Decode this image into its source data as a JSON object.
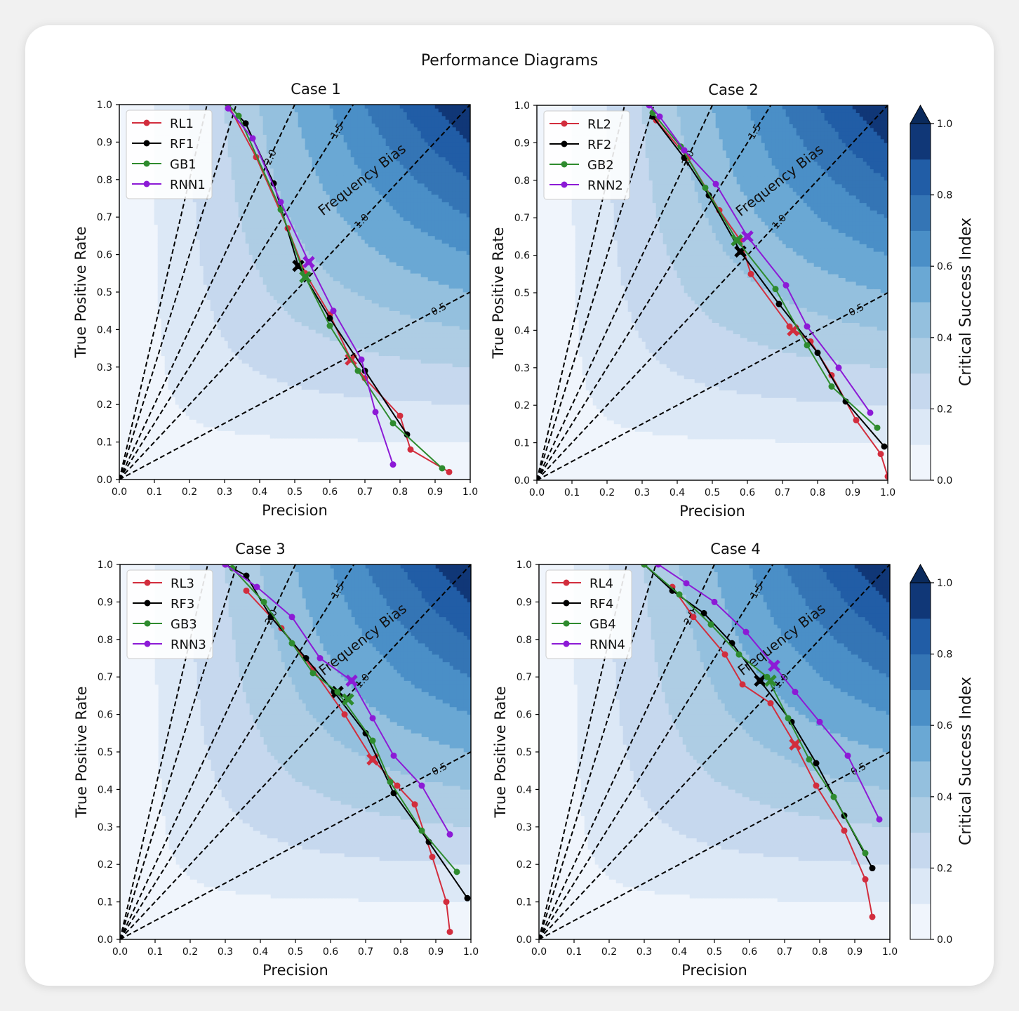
{
  "suptitle": "Performance Diagrams",
  "xlabel": "Precision",
  "ylabel": "True Positive Rate",
  "bias_label": "Frequency Bias",
  "colorbar": {
    "label": "Critical Success Index",
    "ticks": [
      "0.0",
      "0.2",
      "0.4",
      "0.6",
      "0.8",
      "1.0"
    ],
    "colors": [
      "#f0f5fc",
      "#dce8f6",
      "#c6d8ee",
      "#aecde4",
      "#94c0de",
      "#6aa8d4",
      "#4a8fc7",
      "#3475b5",
      "#215da6",
      "#103777"
    ]
  },
  "tick_labels": [
    "0.0",
    "0.1",
    "0.2",
    "0.3",
    "0.4",
    "0.5",
    "0.6",
    "0.7",
    "0.8",
    "0.9",
    "1.0"
  ],
  "bias_lines": [
    {
      "bias": 2.0,
      "label": "2.0"
    },
    {
      "bias": 1.5,
      "label": "1.5"
    },
    {
      "bias": 1.0,
      "label": "1.0"
    },
    {
      "bias": 0.5,
      "label": "0.5"
    },
    {
      "bias": 3.0,
      "label": ""
    },
    {
      "bias": 4.0,
      "label": ""
    }
  ],
  "series_colors": {
    "RL": "#d22d3d",
    "RF": "#000000",
    "GB": "#2e8b2e",
    "RNN": "#8c1ad6"
  },
  "chart_data": [
    {
      "type": "line",
      "title": "Case 1",
      "xlabel": "Precision",
      "ylabel": "True Positive Rate",
      "xlim": [
        0,
        1
      ],
      "ylim": [
        0,
        1
      ],
      "series": [
        {
          "name": "RL1",
          "x": [
            0.31,
            0.39,
            0.48,
            0.53,
            0.6,
            0.66,
            0.7,
            0.8,
            0.83,
            0.94
          ],
          "y": [
            1.0,
            0.86,
            0.67,
            0.55,
            0.44,
            0.32,
            0.27,
            0.17,
            0.08,
            0.02
          ],
          "marker_x": 0.66,
          "marker_y": 0.32
        },
        {
          "name": "RF1",
          "x": [
            0.31,
            0.36,
            0.44,
            0.51,
            0.6,
            0.7,
            0.82
          ],
          "y": [
            1.0,
            0.95,
            0.79,
            0.57,
            0.43,
            0.29,
            0.12
          ],
          "marker_x": 0.51,
          "marker_y": 0.57
        },
        {
          "name": "GB1",
          "x": [
            0.31,
            0.34,
            0.46,
            0.53,
            0.6,
            0.68,
            0.78,
            0.92
          ],
          "y": [
            1.0,
            0.97,
            0.72,
            0.54,
            0.41,
            0.29,
            0.15,
            0.03
          ],
          "marker_x": 0.53,
          "marker_y": 0.54
        },
        {
          "name": "RNN1",
          "x": [
            0.31,
            0.38,
            0.46,
            0.54,
            0.61,
            0.69,
            0.73,
            0.78
          ],
          "y": [
            0.99,
            0.91,
            0.74,
            0.58,
            0.45,
            0.32,
            0.18,
            0.04
          ],
          "marker_x": 0.54,
          "marker_y": 0.58
        }
      ]
    },
    {
      "type": "line",
      "title": "Case 2",
      "xlabel": "Precision",
      "ylabel": "True Positive Rate",
      "xlim": [
        0,
        1
      ],
      "ylim": [
        0,
        1
      ],
      "series": [
        {
          "name": "RL2",
          "x": [
            0.34,
            0.43,
            0.52,
            0.58,
            0.61,
            0.72,
            0.78,
            0.84,
            0.91,
            0.98,
            1.0
          ],
          "y": [
            0.96,
            0.86,
            0.72,
            0.64,
            0.55,
            0.41,
            0.37,
            0.28,
            0.16,
            0.07,
            0.01
          ],
          "marker_x": 0.73,
          "marker_y": 0.4
        },
        {
          "name": "RF2",
          "x": [
            0.33,
            0.42,
            0.49,
            0.58,
            0.69,
            0.8,
            0.88,
            0.99
          ],
          "y": [
            0.97,
            0.86,
            0.76,
            0.61,
            0.47,
            0.34,
            0.21,
            0.09
          ],
          "marker_x": 0.58,
          "marker_y": 0.61
        },
        {
          "name": "GB2",
          "x": [
            0.33,
            0.41,
            0.48,
            0.57,
            0.68,
            0.77,
            0.84,
            0.97
          ],
          "y": [
            0.98,
            0.89,
            0.78,
            0.64,
            0.51,
            0.36,
            0.25,
            0.14
          ],
          "marker_x": 0.57,
          "marker_y": 0.64
        },
        {
          "name": "RNN2",
          "x": [
            0.32,
            0.35,
            0.42,
            0.51,
            0.6,
            0.71,
            0.77,
            0.86,
            0.95
          ],
          "y": [
            1.0,
            0.97,
            0.88,
            0.79,
            0.65,
            0.52,
            0.41,
            0.3,
            0.18
          ],
          "marker_x": 0.6,
          "marker_y": 0.65
        }
      ]
    },
    {
      "type": "line",
      "title": "Case 3",
      "xlabel": "Precision",
      "ylabel": "True Positive Rate",
      "xlim": [
        0,
        1
      ],
      "ylim": [
        0,
        1
      ],
      "series": [
        {
          "name": "RL3",
          "x": [
            0.36,
            0.46,
            0.55,
            0.64,
            0.72,
            0.79,
            0.84,
            0.89,
            0.93,
            0.94
          ],
          "y": [
            0.93,
            0.83,
            0.72,
            0.6,
            0.48,
            0.41,
            0.36,
            0.22,
            0.1,
            0.02
          ],
          "marker_x": 0.72,
          "marker_y": 0.48
        },
        {
          "name": "RF3",
          "x": [
            0.3,
            0.36,
            0.43,
            0.53,
            0.61,
            0.7,
            0.78,
            0.88,
            0.99
          ],
          "y": [
            1.0,
            0.97,
            0.86,
            0.75,
            0.66,
            0.55,
            0.39,
            0.26,
            0.11
          ],
          "marker_x": 0.62,
          "marker_y": 0.66
        },
        {
          "name": "GB3",
          "x": [
            0.32,
            0.41,
            0.49,
            0.55,
            0.62,
            0.72,
            0.77,
            0.86,
            0.96
          ],
          "y": [
            0.99,
            0.9,
            0.79,
            0.71,
            0.66,
            0.53,
            0.42,
            0.29,
            0.18
          ],
          "marker_x": 0.65,
          "marker_y": 0.64
        },
        {
          "name": "RNN3",
          "x": [
            0.3,
            0.39,
            0.49,
            0.57,
            0.66,
            0.72,
            0.78,
            0.86,
            0.94
          ],
          "y": [
            1.0,
            0.94,
            0.86,
            0.75,
            0.69,
            0.59,
            0.49,
            0.41,
            0.28
          ],
          "marker_x": 0.66,
          "marker_y": 0.69
        }
      ]
    },
    {
      "type": "line",
      "title": "Case 4",
      "xlabel": "Precision",
      "ylabel": "True Positive Rate",
      "xlim": [
        0,
        1
      ],
      "ylim": [
        0,
        1
      ],
      "series": [
        {
          "name": "RL4",
          "x": [
            0.38,
            0.44,
            0.53,
            0.58,
            0.66,
            0.73,
            0.79,
            0.87,
            0.93,
            0.95
          ],
          "y": [
            0.94,
            0.86,
            0.76,
            0.68,
            0.63,
            0.52,
            0.41,
            0.29,
            0.16,
            0.06
          ],
          "marker_x": 0.73,
          "marker_y": 0.52
        },
        {
          "name": "RF4",
          "x": [
            0.3,
            0.38,
            0.47,
            0.55,
            0.63,
            0.72,
            0.79,
            0.87,
            0.95
          ],
          "y": [
            1.0,
            0.93,
            0.87,
            0.79,
            0.69,
            0.58,
            0.47,
            0.33,
            0.19
          ],
          "marker_x": 0.63,
          "marker_y": 0.69
        },
        {
          "name": "GB4",
          "x": [
            0.3,
            0.4,
            0.49,
            0.57,
            0.65,
            0.71,
            0.77,
            0.84,
            0.93
          ],
          "y": [
            1.0,
            0.92,
            0.84,
            0.76,
            0.7,
            0.59,
            0.48,
            0.38,
            0.23
          ],
          "marker_x": 0.66,
          "marker_y": 0.69
        },
        {
          "name": "RNN4",
          "x": [
            0.34,
            0.42,
            0.5,
            0.59,
            0.67,
            0.73,
            0.8,
            0.88,
            0.97
          ],
          "y": [
            1.0,
            0.95,
            0.9,
            0.82,
            0.73,
            0.66,
            0.58,
            0.49,
            0.32
          ],
          "marker_x": 0.67,
          "marker_y": 0.73
        }
      ]
    }
  ]
}
